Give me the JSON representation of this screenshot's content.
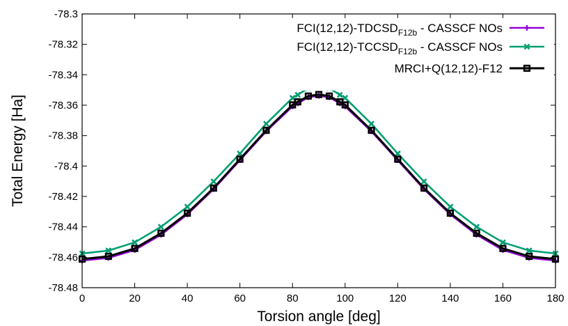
{
  "chart_data": {
    "type": "line",
    "xlabel": "Torsion angle [deg]",
    "ylabel": "Total Energy [Ha]",
    "xlim": [
      0,
      180
    ],
    "ylim": [
      -78.48,
      -78.3
    ],
    "xticks": [
      0,
      20,
      40,
      60,
      80,
      100,
      120,
      140,
      160,
      180
    ],
    "yticks": [
      -78.3,
      -78.32,
      -78.34,
      -78.36,
      -78.38,
      -78.4,
      -78.42,
      -78.44,
      -78.46,
      -78.48
    ],
    "xtick_labels": [
      "0",
      "20",
      "40",
      "60",
      "80",
      "100",
      "120",
      "140",
      "160",
      "180"
    ],
    "ytick_labels": [
      "-78.3",
      "-78.32",
      "-78.34",
      "-78.36",
      "-78.38",
      "-78.4",
      "-78.42",
      "-78.44",
      "-78.46",
      "-78.48"
    ],
    "grid": false,
    "legend_position": "top-right",
    "x": [
      0,
      10,
      20,
      30,
      40,
      50,
      60,
      70,
      80,
      82,
      86,
      90,
      94,
      98,
      100,
      110,
      120,
      130,
      140,
      150,
      160,
      170,
      180
    ],
    "series": [
      {
        "legend_parts": [
          "FCI(12,12)-TDCSD",
          "F12b",
          " - CASSCF NOs"
        ],
        "color": "#9400d3",
        "marker": "plus",
        "values": [
          -78.4622,
          -78.4604,
          -78.4552,
          -78.4452,
          -78.4318,
          -78.4152,
          -78.3962,
          -78.3772,
          -78.3608,
          -78.3588,
          -78.3548,
          -78.3538,
          -78.3548,
          -78.3588,
          -78.3608,
          -78.3772,
          -78.3962,
          -78.4152,
          -78.4318,
          -78.4452,
          -78.4552,
          -78.4604,
          -78.4622
        ]
      },
      {
        "legend_parts": [
          "FCI(12,12)-TCCSD",
          "F12b",
          " - CASSCF NOs"
        ],
        "color": "#009e73",
        "marker": "cross",
        "values": [
          -78.4575,
          -78.4556,
          -78.4502,
          -78.44,
          -78.4268,
          -78.4102,
          -78.3918,
          -78.3722,
          -78.3552,
          -78.3532,
          -78.3488,
          -78.3468,
          -78.3488,
          -78.3532,
          -78.3552,
          -78.3722,
          -78.3918,
          -78.4102,
          -78.4268,
          -78.44,
          -78.4502,
          -78.4556,
          -78.4575
        ]
      },
      {
        "legend_parts": [
          "MRCI+Q(12,12)-F12",
          "",
          ""
        ],
        "color": "#000000",
        "marker": "square",
        "values": [
          -78.4612,
          -78.4594,
          -78.4542,
          -78.4442,
          -78.431,
          -78.4145,
          -78.3955,
          -78.3765,
          -78.3598,
          -78.3578,
          -78.354,
          -78.353,
          -78.354,
          -78.3578,
          -78.3598,
          -78.3765,
          -78.3955,
          -78.4145,
          -78.431,
          -78.4442,
          -78.4542,
          -78.4594,
          -78.4612
        ]
      }
    ]
  }
}
